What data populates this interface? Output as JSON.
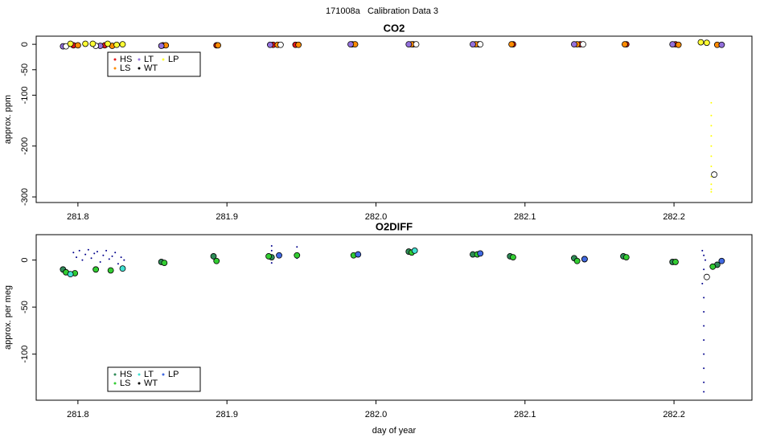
{
  "title": "171008a   Calibration Data 3",
  "chart_data": [
    {
      "type": "scatter",
      "title": "CO2",
      "y_label": "approx. ppm",
      "xlim": [
        281.772,
        282.2523
      ],
      "ylim": [
        -311,
        16
      ],
      "xticks": [
        281.8,
        281.9,
        {
          "value": 282,
          "label": "282.0"
        },
        282.1,
        282.2
      ],
      "yticks": [
        0,
        -50,
        -100,
        -200,
        -300
      ],
      "legend": "top-left",
      "series": [
        {
          "name": "HS",
          "color": "#e41a1c",
          "x": [
            281.797,
            281.818,
            281.857,
            281.893,
            281.931,
            281.946,
            281.984,
            282.025,
            282.069,
            282.092,
            282.137,
            282.168,
            282.201
          ],
          "values": [
            -2,
            -2,
            -2,
            -2,
            -1,
            -1,
            0,
            0,
            0,
            0,
            0,
            0,
            0
          ]
        },
        {
          "name": "LS",
          "color": "#ff8c00",
          "x": [
            281.8,
            281.823,
            281.859,
            281.894,
            281.934,
            281.948,
            281.986,
            282.024,
            282.067,
            282.091,
            282.135,
            282.167,
            282.203,
            282.229
          ],
          "values": [
            -2,
            -3,
            -2,
            -2,
            -1,
            -1,
            0,
            0,
            0,
            0,
            0,
            0,
            -1,
            -1
          ]
        },
        {
          "name": "LT",
          "color": "#9370db",
          "x": [
            281.79,
            281.815,
            281.856,
            281.929,
            281.983,
            282.022,
            282.065,
            282.133,
            282.199,
            282.232
          ],
          "values": [
            -4,
            -3,
            -3,
            -1,
            0,
            0,
            0,
            0,
            0,
            -1
          ]
        },
        {
          "name": "WT",
          "color": "#ffffff",
          "x": [
            281.792,
            281.812,
            281.936,
            282.027,
            282.07,
            282.139,
            282.227
          ],
          "values": [
            -4,
            -3,
            -1,
            0,
            0,
            0,
            -256
          ]
        },
        {
          "name": "LP",
          "color": "#ffff33",
          "x": [
            281.795,
            281.805,
            281.81,
            281.82,
            281.826,
            281.83,
            282.218,
            282.222
          ],
          "values": [
            1,
            1,
            1,
            1,
            -1,
            0,
            4,
            3
          ]
        }
      ],
      "dots": [
        {
          "color": "#ffff00",
          "x": [
            282.225,
            282.225,
            282.225,
            282.225,
            282.225,
            282.225,
            282.225,
            282.225,
            282.225,
            282.225,
            282.225
          ],
          "values": [
            -115,
            -140,
            -160,
            -180,
            -200,
            -220,
            -240,
            -260,
            -275,
            -285,
            -290
          ]
        }
      ]
    },
    {
      "type": "scatter",
      "title": "O2DIFF",
      "y_label": "approx. per meg",
      "x_label": "day of year",
      "xlim": [
        281.772,
        282.2523
      ],
      "ylim": [
        -149,
        27
      ],
      "xticks": [
        281.8,
        281.9,
        {
          "value": 282,
          "label": "282.0"
        },
        282.1,
        282.2
      ],
      "yticks": [
        0,
        -50,
        -100
      ],
      "legend": "bottom-left",
      "series": [
        {
          "name": "HS",
          "color": "#2e8b57",
          "x": [
            281.79,
            281.856,
            281.891,
            281.93,
            282.022,
            282.065,
            282.09,
            282.133,
            282.166,
            282.199,
            282.229
          ],
          "values": [
            -10,
            -2,
            4,
            3,
            9,
            6,
            4,
            2,
            4,
            -2,
            -5
          ]
        },
        {
          "name": "LS",
          "color": "#32cd32",
          "x": [
            281.792,
            281.798,
            281.812,
            281.822,
            281.858,
            281.893,
            281.928,
            281.947,
            281.985,
            282.024,
            282.068,
            282.092,
            282.135,
            282.168,
            282.201,
            282.226
          ],
          "values": [
            -13,
            -14,
            -10,
            -11,
            -3,
            -1,
            4,
            5,
            5,
            8,
            6,
            3,
            -1,
            3,
            -2,
            -7
          ]
        },
        {
          "name": "LT",
          "color": "#40e0d0",
          "x": [
            281.795,
            281.83,
            282.026,
            282.14
          ],
          "values": [
            -15,
            -9,
            10,
            1
          ]
        },
        {
          "name": "WT",
          "color": "#ffffff",
          "x": [
            282.222
          ],
          "values": [
            -18
          ]
        },
        {
          "name": "LP",
          "color": "#4169e1",
          "x": [
            281.935,
            281.988,
            282.07,
            282.14,
            282.232
          ],
          "values": [
            5,
            6,
            7,
            1,
            -1
          ]
        }
      ],
      "dots": [
        {
          "color": "#00008b",
          "x": [
            281.797,
            281.799,
            281.801,
            281.803,
            281.805,
            281.807,
            281.809,
            281.811,
            281.813,
            281.815,
            281.817,
            281.819,
            281.821,
            281.823,
            281.825,
            281.827,
            281.829,
            281.831,
            281.93,
            281.93,
            281.93,
            281.947,
            281.947,
            282.219,
            282.22,
            282.221,
            282.22,
            282.219,
            282.22,
            282.22,
            282.22,
            282.22,
            282.22,
            282.22,
            282.22,
            282.22
          ],
          "values": [
            8,
            3,
            10,
            0,
            6,
            11,
            2,
            7,
            9,
            -2,
            5,
            10,
            1,
            4,
            8,
            -4,
            3,
            0,
            15,
            10,
            -3,
            14,
            2,
            10,
            5,
            0,
            -10,
            -25,
            -40,
            -55,
            -70,
            -85,
            -100,
            -115,
            -130,
            -140
          ]
        }
      ]
    }
  ]
}
